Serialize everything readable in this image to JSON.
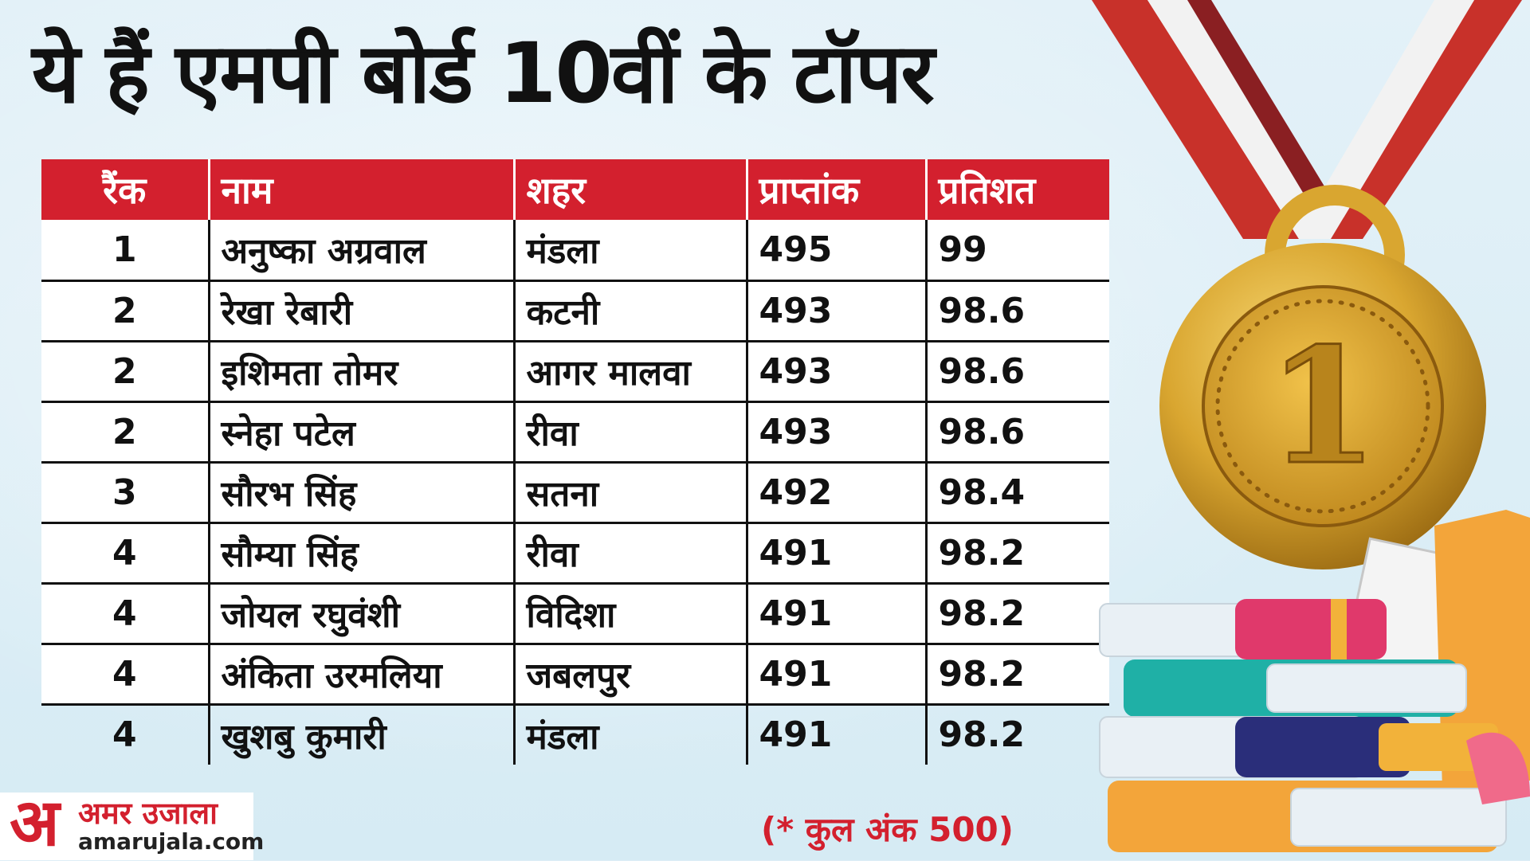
{
  "title": "ये हैं एमपी बोर्ड 10वीं के टॉपर",
  "table": {
    "headers": [
      "रैंक",
      "नाम",
      "शहर",
      "प्राप्तांक",
      "प्रतिशत"
    ],
    "rows": [
      [
        "1",
        "अनुष्का अग्रवाल",
        "मंडला",
        "495",
        "99"
      ],
      [
        "2",
        "रेखा रेबारी",
        "कटनी",
        "493",
        "98.6"
      ],
      [
        "2",
        "इशिमता तोमर",
        "आगर मालवा",
        "493",
        "98.6"
      ],
      [
        "2",
        "स्नेहा पटेल",
        "रीवा",
        "493",
        "98.6"
      ],
      [
        "3",
        "सौरभ सिंह",
        "सतना",
        "492",
        "98.4"
      ],
      [
        "4",
        "सौम्या सिंह",
        "रीवा",
        "491",
        "98.2"
      ],
      [
        "4",
        "जोयल रघुवंशी",
        "विदिशा",
        "491",
        "98.2"
      ],
      [
        "4",
        "अंकिता उरमलिया",
        "जबलपुर",
        "491",
        "98.2"
      ],
      [
        "4",
        "खुशबु कुमारी",
        "मंडला",
        "491",
        "98.2"
      ]
    ]
  },
  "footnote": "(* कुल अंक 500)",
  "logo": {
    "glyph": "अ",
    "name": "अमर उजाला",
    "domain": "amarujala.com"
  },
  "medal": {
    "label": "1",
    "colors": {
      "gold": "#d9a630",
      "ribbon_red": "#c8312a",
      "ribbon_white": "#f2f2f2"
    }
  },
  "colors": {
    "header_bg": "#d3202e",
    "accent": "#d3202e"
  }
}
